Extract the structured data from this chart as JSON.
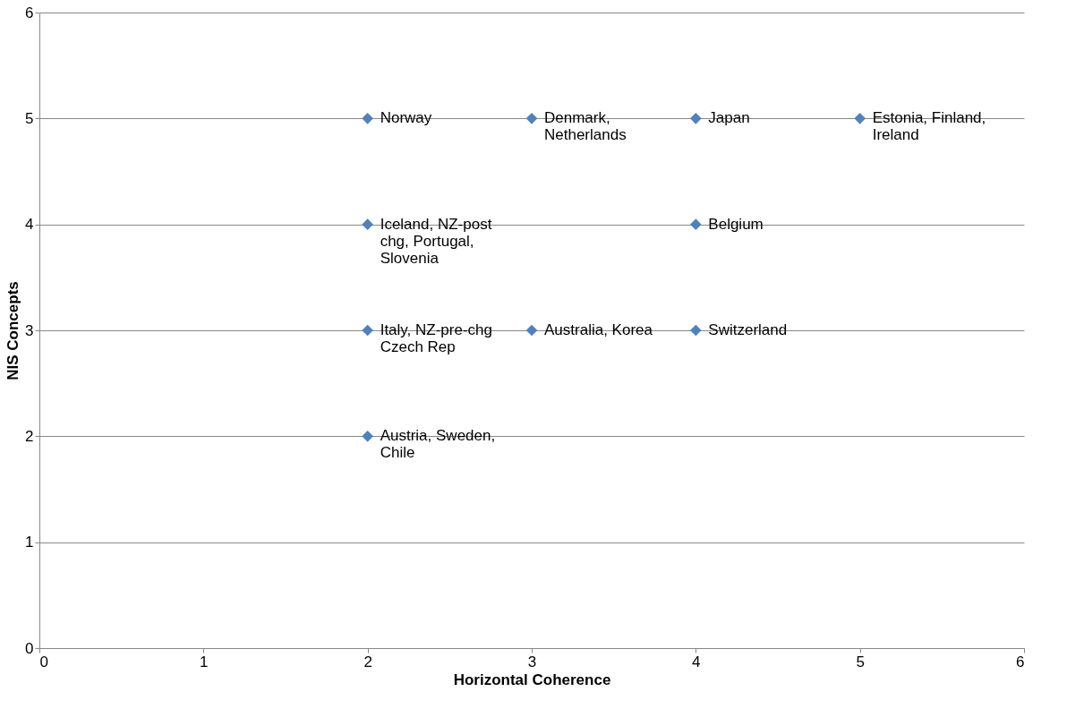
{
  "chart_data": {
    "type": "scatter",
    "xlabel": "Horizontal Coherence",
    "ylabel": "NIS Concepts",
    "x": [
      2,
      3,
      4,
      5,
      2,
      4,
      2,
      3,
      4,
      2
    ],
    "series": [
      {
        "color": "#4f81bd",
        "values": [
          5,
          5,
          5,
          5,
          4,
          4,
          3,
          3,
          3,
          2
        ]
      }
    ],
    "marker": "diamond",
    "grid": "y",
    "xlim": [
      0,
      6
    ],
    "xticks": [
      0,
      1,
      2,
      3,
      4,
      5,
      6
    ],
    "ylim": [
      0,
      6
    ],
    "yticks": [
      0,
      1,
      2,
      3,
      4,
      5,
      6
    ],
    "annotations": [
      {
        "text": "Norway",
        "x": 2,
        "y": 5
      },
      {
        "text": "Denmark,\nNetherlands",
        "x": 3,
        "y": 5
      },
      {
        "text": "Japan",
        "x": 4,
        "y": 5
      },
      {
        "text": "Estonia, Finland,\nIreland",
        "x": 5,
        "y": 5
      },
      {
        "text": "Iceland, NZ-post\nchg, Portugal,\nSlovenia",
        "x": 2,
        "y": 4
      },
      {
        "text": "Belgium",
        "x": 4,
        "y": 4
      },
      {
        "text": "Italy, NZ-pre-chg\nCzech Rep",
        "x": 2,
        "y": 3
      },
      {
        "text": "Australia, Korea",
        "x": 3,
        "y": 3
      },
      {
        "text": "Switzerland",
        "x": 4,
        "y": 3
      },
      {
        "text": "Austria, Sweden,\nChile",
        "x": 2,
        "y": 2
      }
    ]
  }
}
